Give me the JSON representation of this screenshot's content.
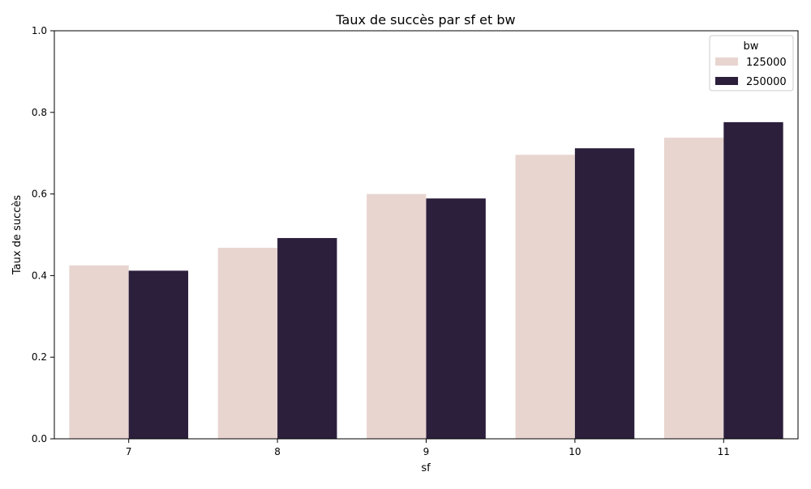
{
  "chart_data": {
    "type": "bar",
    "title": "Taux de succès par sf et bw",
    "xlabel": "sf",
    "ylabel": "Taux de succès",
    "categories": [
      "7",
      "8",
      "9",
      "10",
      "11"
    ],
    "series": [
      {
        "name": "125000",
        "values": [
          0.425,
          0.468,
          0.6,
          0.696,
          0.738
        ],
        "color": "#e8d5d0"
      },
      {
        "name": "250000",
        "values": [
          0.412,
          0.492,
          0.589,
          0.712,
          0.776
        ],
        "color": "#2c1f3c"
      }
    ],
    "ylim": [
      0,
      1.0
    ],
    "yticks": [
      "0.0",
      "0.2",
      "0.4",
      "0.6",
      "0.8",
      "1.0"
    ],
    "legend": {
      "title": "bw",
      "position": "top-right"
    },
    "grid": false
  }
}
